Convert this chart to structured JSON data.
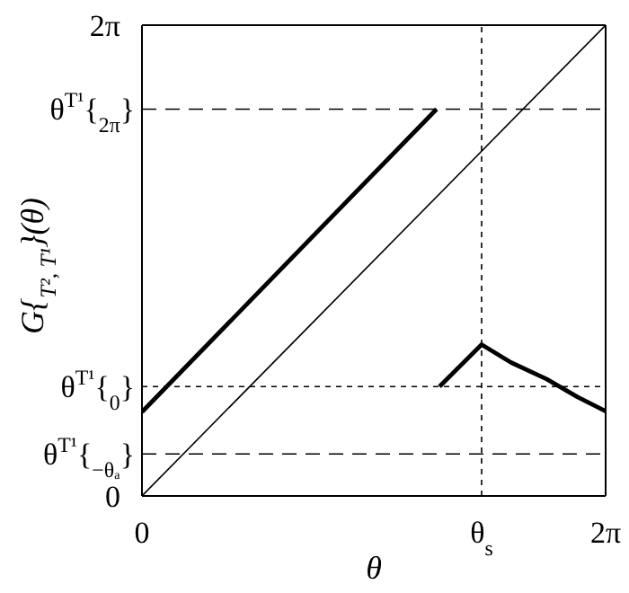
{
  "chart_data": {
    "type": "line",
    "xlabel": "θ",
    "ylabel": "G{$_{T², T¹}$}(θ)",
    "series": [
      {
        "color": "#000000",
        "x": [
          0,
          6.28
        ],
        "values": [
          0,
          6.28
        ]
      },
      {
        "color": "#000000",
        "x": [
          0,
          3.99
        ],
        "values": [
          1.12,
          5.16
        ]
      },
      {
        "color": "#000000",
        "x": [
          4.03,
          4.6,
          5.0,
          5.48,
          5.9,
          6.28
        ],
        "values": [
          1.46,
          2.02,
          1.78,
          1.56,
          1.32,
          1.13
        ]
      }
    ],
    "xlim": [
      0,
      6.28
    ],
    "ylim": [
      0,
      6.28
    ],
    "xticks": [
      0,
      {
        "value": 4.6,
        "label": "θ$_{s}$"
      },
      {
        "value": 6.28,
        "label": "2π"
      }
    ],
    "yticks": [
      0,
      {
        "value": 6.28,
        "label": "2π"
      }
    ],
    "ref_lines": [
      {
        "axis": "y",
        "value": 5.16,
        "line_style": "dashed",
        "label": "θ$^{T¹}${$_{2π}$}"
      },
      {
        "axis": "y",
        "value": 1.46,
        "line_style": "dotted",
        "label": "θ$^{T¹}${$_{0}$}"
      },
      {
        "axis": "y",
        "value": 0.56,
        "line_style": "dashed",
        "label": "θ$^{T¹}${$_{−θₐ}$}"
      },
      {
        "axis": "x",
        "value": 4.6,
        "line_style": "dotted"
      }
    ],
    "legend": false,
    "marker": "none",
    "line_style": "solid"
  }
}
